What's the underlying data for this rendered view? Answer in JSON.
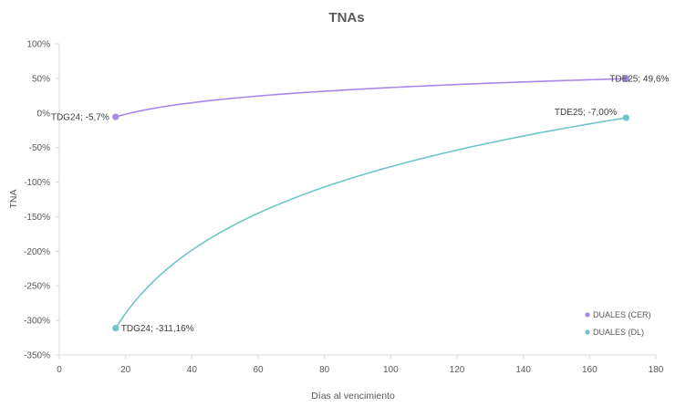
{
  "chart_data": {
    "type": "scatter",
    "title": "TNAs",
    "xlabel": "Días al vencimiento",
    "ylabel": "TNA",
    "xlim": [
      0,
      180
    ],
    "ylim": [
      -350,
      100
    ],
    "x_ticks": [
      "0",
      "20",
      "40",
      "60",
      "80",
      "100",
      "120",
      "140",
      "160",
      "180"
    ],
    "y_ticks": [
      "100%",
      "50%",
      "0%",
      "-50%",
      "-100%",
      "-150%",
      "-200%",
      "-250%",
      "-300%",
      "-350%"
    ],
    "grid": false,
    "legend_position": "bottom-right",
    "series": [
      {
        "name": "DUALES (CER)",
        "color": "#a889e8",
        "trend": "logarithmic",
        "points": [
          {
            "x": 17,
            "y": -5.7,
            "label": "TDG24; -5,7%"
          },
          {
            "x": 171,
            "y": 49.6,
            "label": "TDE25; 49,6%"
          }
        ]
      },
      {
        "name": "DUALES (DL)",
        "color": "#6ec6c8",
        "trend": "logarithmic",
        "points": [
          {
            "x": 17,
            "y": -311.16,
            "label": "TDG24; -311,16%"
          },
          {
            "x": 171,
            "y": -7.0,
            "label": "TDE25; -7,00%"
          }
        ]
      }
    ]
  }
}
